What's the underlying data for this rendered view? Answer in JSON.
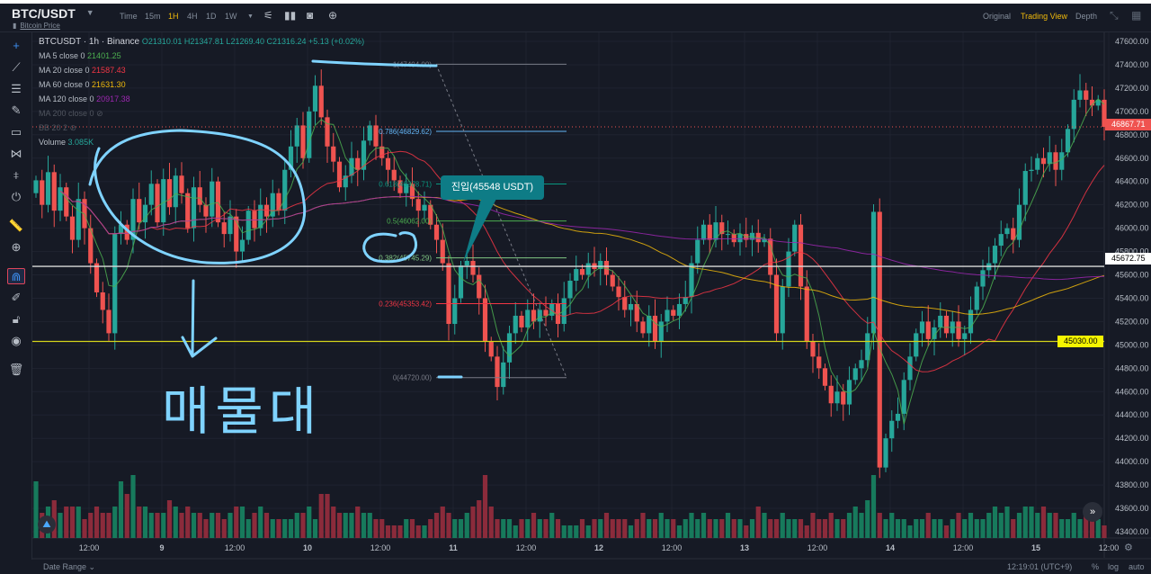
{
  "header": {
    "pair": "BTC/USDT",
    "subtitle": "Bitcoin Price",
    "timeframes": [
      "Time",
      "15m",
      "1H",
      "4H",
      "1D",
      "1W"
    ],
    "active_timeframe": "1H",
    "views": [
      "Original",
      "Trading View",
      "Depth"
    ],
    "active_view": "Trading View"
  },
  "legend": {
    "symbol": "BTCUSDT · 1h · Binance",
    "ohlc": "O21310.01 H21347.81 L21269.40 C21316.24 +5.13 (+0.02%)",
    "ma": [
      {
        "label": "MA 5 close 0",
        "value": "21401.25",
        "color": "#4caf50"
      },
      {
        "label": "MA 20 close 0",
        "value": "21587.43",
        "color": "#f23645"
      },
      {
        "label": "MA 60 close 0",
        "value": "21631.30",
        "color": "#f0b90b"
      },
      {
        "label": "MA 120 close 0",
        "value": "20917.38",
        "color": "#9c27b0"
      }
    ],
    "hidden": [
      "MA 200 close 0",
      "BB 20 2"
    ],
    "volume_label": "Volume",
    "volume_value": "3.085K"
  },
  "colors": {
    "up": "#26a69a",
    "down": "#ef5350",
    "vol_up": "#177a5c",
    "vol_down": "#8b2b3b",
    "white_line": "#d9d9d9",
    "yellow_line": "#d4d41a",
    "annotation": "#7fd3ff",
    "tooltip": "#0e7c86"
  },
  "annotations": {
    "handwritten_text": "매물대",
    "entry_tooltip": "진입(45548 USDT)"
  },
  "bottom": {
    "date_range": "Date Range",
    "clock": "12:19:01 (UTC+9)",
    "percent": "%",
    "log": "log",
    "auto": "auto"
  },
  "chart_data": {
    "type": "candlestick",
    "ylim": [
      43400,
      47600
    ],
    "y_ticks": [
      "47600.00",
      "47400.00",
      "47200.00",
      "47000.00",
      "46800.00",
      "46600.00",
      "46400.00",
      "46200.00",
      "46000.00",
      "45800.00",
      "45600.00",
      "45400.00",
      "45200.00",
      "45000.00",
      "44800.00",
      "44600.00",
      "44400.00",
      "44200.00",
      "44000.00",
      "43800.00",
      "43600.00",
      "43400.00"
    ],
    "x_ticks": [
      "12:00",
      "9",
      "12:00",
      "10",
      "12:00",
      "11",
      "12:00",
      "12",
      "12:00",
      "13",
      "12:00",
      "14",
      "12:00",
      "15",
      "12:00"
    ],
    "first_open": 46300,
    "close": [
      46410,
      46200,
      46480,
      46150,
      46350,
      46100,
      45900,
      46250,
      46000,
      45700,
      45450,
      45300,
      45100,
      45950,
      46030,
      45900,
      46250,
      46050,
      46200,
      46380,
      46050,
      46420,
      46180,
      46450,
      46300,
      46000,
      46350,
      46200,
      46100,
      46400,
      46050,
      45950,
      46100,
      45800,
      45900,
      46150,
      46000,
      46200,
      46100,
      46300,
      46150,
      46500,
      46700,
      46880,
      46600,
      47000,
      47220,
      46950,
      46700,
      46570,
      46350,
      46450,
      46600,
      46500,
      46750,
      46880,
      46700,
      46600,
      46500,
      46410,
      46300,
      46380,
      46250,
      46150,
      46200,
      46030,
      45900,
      45700,
      45180,
      45400,
      45680,
      45720,
      45600,
      45400,
      45030,
      44900,
      44640,
      44850,
      45100,
      45250,
      45150,
      45300,
      45200,
      45300,
      45250,
      45350,
      45180,
      45400,
      45550,
      45650,
      45600,
      45700,
      45650,
      45720,
      45600,
      45500,
      45410,
      45300,
      45350,
      45200,
      45100,
      45250,
      45030,
      45200,
      45300,
      45250,
      45350,
      45410,
      45700,
      45900,
      46030,
      45900,
      46050,
      45950,
      45950,
      45880,
      45950,
      45900,
      45960,
      45880,
      45910,
      45600,
      45100,
      45500,
      45800,
      46030,
      45500,
      45030,
      44900,
      44800,
      44650,
      44500,
      44600,
      44490,
      44700,
      44800,
      44870,
      45100,
      46140,
      43950,
      44200,
      44350,
      44410,
      44700,
      44900,
      45100,
      45200,
      45050,
      45150,
      45250,
      45100,
      45200,
      45050,
      45100,
      45300,
      45500,
      45640,
      45700,
      45850,
      45950,
      46000,
      45900,
      46200,
      46490,
      46500,
      46600,
      46550,
      46650,
      46500,
      46650,
      46850,
      47100,
      47180,
      47100,
      47050,
      47100,
      46867.71
    ],
    "volume": [
      9,
      4,
      5,
      6,
      4,
      5,
      5,
      5,
      3,
      4,
      5,
      4,
      4,
      5,
      9,
      7,
      10,
      5,
      5,
      4,
      4,
      4,
      6,
      5,
      4,
      5,
      4,
      4,
      3,
      4,
      4,
      3,
      4,
      5,
      5,
      3,
      4,
      5,
      4,
      3,
      3,
      3,
      3,
      4,
      4,
      5,
      3,
      7,
      7,
      5,
      4,
      4,
      4,
      5,
      4,
      4,
      3,
      3,
      2,
      2,
      2,
      3,
      3,
      2,
      2,
      3,
      4,
      5,
      4,
      3,
      3,
      4,
      5,
      6,
      10,
      5,
      3,
      3,
      3,
      2,
      3,
      3,
      4,
      3,
      3,
      4,
      3,
      2,
      2,
      2,
      3,
      2,
      3,
      3,
      4,
      3,
      3,
      3,
      2,
      3,
      4,
      3,
      3,
      4,
      3,
      3,
      2,
      3,
      4,
      3,
      4,
      3,
      3,
      3,
      4,
      3,
      3,
      2,
      3,
      5,
      4,
      3,
      3,
      4,
      3,
      3,
      3,
      2,
      4,
      3,
      3,
      4,
      3,
      3,
      4,
      5,
      4,
      6,
      10,
      4,
      3,
      4,
      3,
      3,
      2,
      3,
      3,
      4,
      3,
      3,
      2,
      3,
      4,
      3,
      4,
      3,
      3,
      4,
      5,
      4,
      5,
      3,
      4,
      5,
      5,
      4,
      5,
      4,
      4,
      3,
      3,
      4,
      3,
      4,
      3,
      3,
      2
    ],
    "moving_averages": [
      5,
      20,
      60,
      120
    ],
    "horizontal_lines": [
      {
        "price": 45672.75,
        "label": "45672.75",
        "color": "#d9d9d9"
      },
      {
        "price": 45030.0,
        "label": "45030.00",
        "color": "#d4d41a"
      }
    ],
    "last_price": {
      "price": 46867.71,
      "label": "46867.71"
    },
    "fibonacci": [
      {
        "label": "1(47404.00)",
        "price": 47404.0,
        "color": "#787b86"
      },
      {
        "label": "0.786(46829.62)",
        "price": 46829.62,
        "color": "#64b5f6"
      },
      {
        "label": "0.618(46378.71)",
        "price": 46378.71,
        "color": "#089981"
      },
      {
        "label": "0.5(46062.00)",
        "price": 46062.0,
        "color": "#4caf50"
      },
      {
        "label": "0.382(45745.29)",
        "price": 45745.29,
        "color": "#81c784"
      },
      {
        "label": "0.236(45353.42)",
        "price": 45353.42,
        "color": "#f23645"
      },
      {
        "label": "0(44720.00)",
        "price": 44720.0,
        "color": "#787b86"
      }
    ]
  }
}
